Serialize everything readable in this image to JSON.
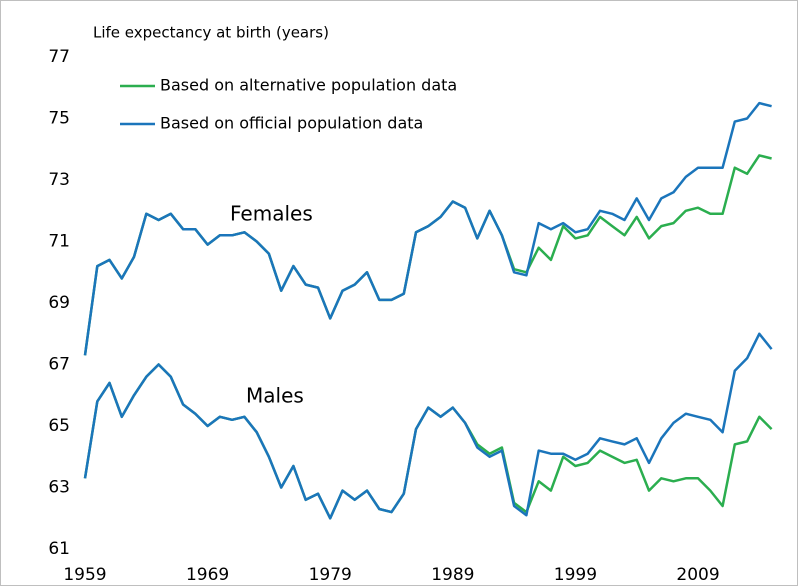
{
  "chart_data": {
    "type": "line",
    "title": "Life expectancy at birth (years)",
    "x": [
      1959,
      1960,
      1961,
      1962,
      1963,
      1964,
      1965,
      1966,
      1967,
      1968,
      1969,
      1970,
      1971,
      1972,
      1973,
      1974,
      1975,
      1976,
      1977,
      1978,
      1979,
      1980,
      1981,
      1982,
      1983,
      1984,
      1985,
      1986,
      1987,
      1988,
      1989,
      1990,
      1991,
      1992,
      1993,
      1994,
      1995,
      1996,
      1997,
      1998,
      1999,
      2000,
      2001,
      2002,
      2003,
      2004,
      2005,
      2006,
      2007,
      2008,
      2009,
      2010,
      2011,
      2012,
      2013,
      2014,
      2015
    ],
    "xlim": [
      1959,
      2016.5
    ],
    "xticks": [
      1959,
      1969,
      1979,
      1989,
      1999,
      2009
    ],
    "ylim": [
      61,
      77
    ],
    "yticks": [
      61,
      63,
      65,
      67,
      69,
      71,
      73,
      75,
      77
    ],
    "legend_position": "upper left",
    "labels": {
      "females": "Females",
      "males": "Males"
    },
    "series": [
      {
        "name": "Based on alternative population data",
        "color": "#2bae4f",
        "females": [
          67.3,
          70.2,
          70.4,
          69.8,
          70.5,
          71.9,
          71.7,
          71.9,
          71.4,
          71.4,
          70.9,
          71.2,
          71.2,
          71.3,
          71.0,
          70.6,
          69.4,
          70.2,
          69.6,
          69.5,
          68.5,
          69.4,
          69.6,
          70.0,
          69.1,
          69.1,
          69.3,
          71.3,
          71.5,
          71.8,
          72.3,
          72.1,
          71.1,
          72.0,
          71.2,
          70.1,
          70.0,
          70.8,
          70.4,
          71.5,
          71.1,
          71.2,
          71.8,
          71.5,
          71.2,
          71.8,
          71.1,
          71.5,
          71.6,
          72.0,
          72.1,
          71.9,
          71.9,
          73.4,
          73.2,
          73.8,
          73.7
        ],
        "males": [
          63.3,
          65.8,
          66.4,
          65.3,
          66.0,
          66.6,
          67.0,
          66.6,
          65.7,
          65.4,
          65.0,
          65.3,
          65.2,
          65.3,
          64.8,
          64.0,
          63.0,
          63.7,
          62.6,
          62.8,
          62.0,
          62.9,
          62.6,
          62.9,
          62.3,
          62.2,
          62.8,
          64.9,
          65.6,
          65.3,
          65.6,
          65.1,
          64.4,
          64.1,
          64.3,
          62.5,
          62.2,
          63.2,
          62.9,
          64.0,
          63.7,
          63.8,
          64.2,
          64.0,
          63.8,
          63.9,
          62.9,
          63.3,
          63.2,
          63.3,
          63.3,
          62.9,
          62.4,
          64.4,
          64.5,
          65.3,
          64.9
        ]
      },
      {
        "name": "Based on official population data",
        "color": "#1b75bb",
        "females": [
          67.3,
          70.2,
          70.4,
          69.8,
          70.5,
          71.9,
          71.7,
          71.9,
          71.4,
          71.4,
          70.9,
          71.2,
          71.2,
          71.3,
          71.0,
          70.6,
          69.4,
          70.2,
          69.6,
          69.5,
          68.5,
          69.4,
          69.6,
          70.0,
          69.1,
          69.1,
          69.3,
          71.3,
          71.5,
          71.8,
          72.3,
          72.1,
          71.1,
          72.0,
          71.2,
          70.0,
          69.9,
          71.6,
          71.4,
          71.6,
          71.3,
          71.4,
          72.0,
          71.9,
          71.7,
          72.4,
          71.7,
          72.4,
          72.6,
          73.1,
          73.4,
          73.4,
          73.4,
          74.9,
          75.0,
          75.5,
          75.4
        ],
        "males": [
          63.3,
          65.8,
          66.4,
          65.3,
          66.0,
          66.6,
          67.0,
          66.6,
          65.7,
          65.4,
          65.0,
          65.3,
          65.2,
          65.3,
          64.8,
          64.0,
          63.0,
          63.7,
          62.6,
          62.8,
          62.0,
          62.9,
          62.6,
          62.9,
          62.3,
          62.2,
          62.8,
          64.9,
          65.6,
          65.3,
          65.6,
          65.1,
          64.3,
          64.0,
          64.2,
          62.4,
          62.1,
          64.2,
          64.1,
          64.1,
          63.9,
          64.1,
          64.6,
          64.5,
          64.4,
          64.6,
          63.8,
          64.6,
          65.1,
          65.4,
          65.3,
          65.2,
          64.8,
          66.8,
          67.2,
          68.0,
          67.5
        ]
      }
    ]
  }
}
